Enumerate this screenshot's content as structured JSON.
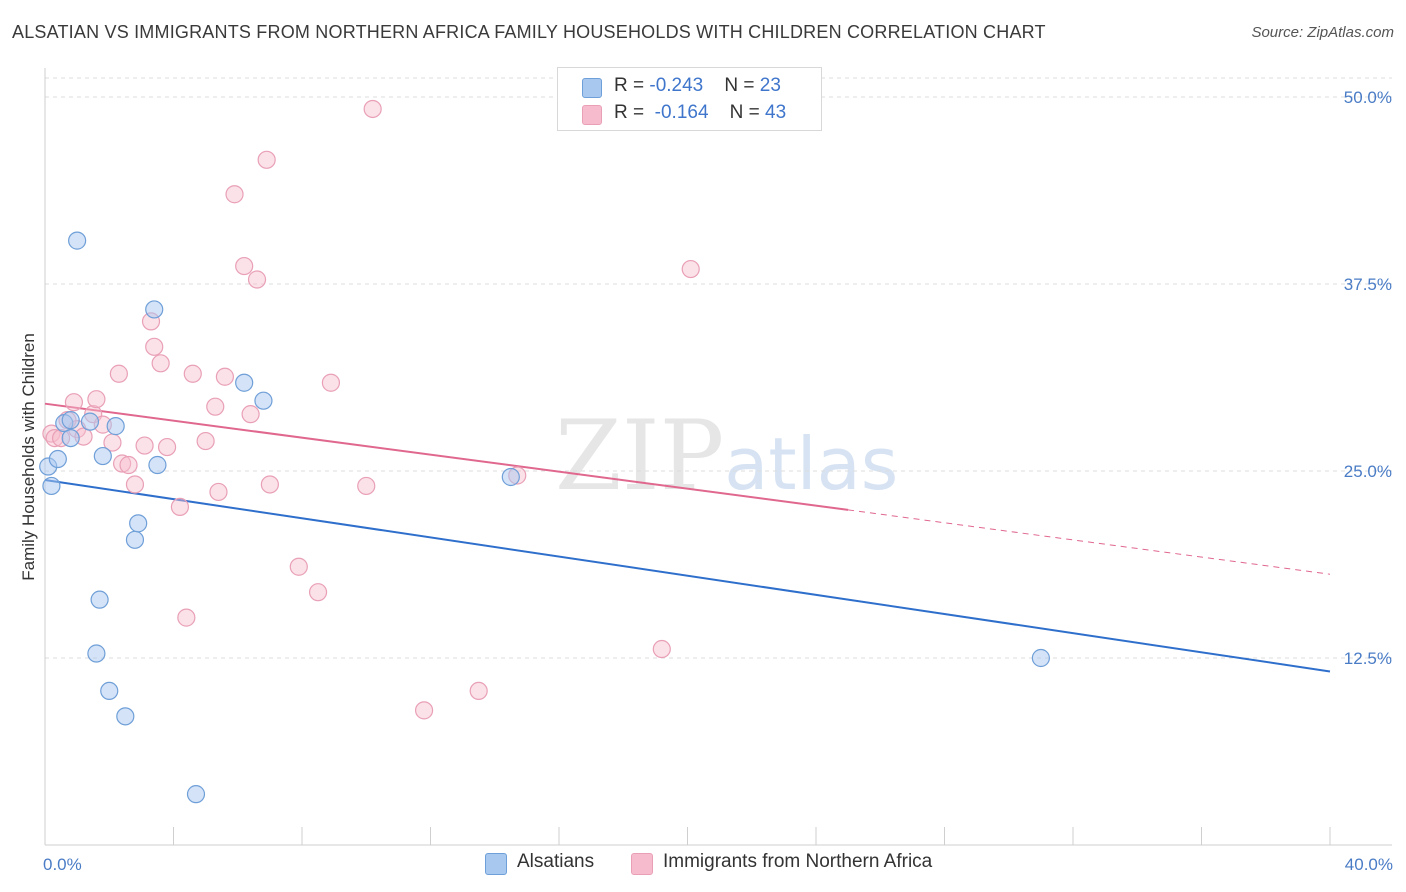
{
  "title": "ALSATIAN VS IMMIGRANTS FROM NORTHERN AFRICA FAMILY HOUSEHOLDS WITH CHILDREN CORRELATION CHART",
  "source": "Source: ZipAtlas.com",
  "watermark": {
    "zip": "ZIP",
    "atlas": "atlas"
  },
  "legend": {
    "rows": [
      {
        "r_label": "R = ",
        "r_value": "-0.243",
        "n_label": "N = ",
        "n_value": "23"
      },
      {
        "r_label": "R = ",
        "r_value": "-0.164",
        "n_label": "N = ",
        "n_value": "43"
      }
    ]
  },
  "colors": {
    "blue_fill": "#a9c8ef",
    "blue_stroke": "#6f9fd8",
    "blue_line": "#2f6fcc",
    "pink_fill": "#f6bccd",
    "pink_stroke": "#e9a0b7",
    "pink_line": "#e0678e",
    "grid": "#dcdcdc",
    "tick_text": "#4a7cc6"
  },
  "chart_data": {
    "type": "scatter",
    "title": "ALSATIAN VS IMMIGRANTS FROM NORTHERN AFRICA FAMILY HOUSEHOLDS WITH CHILDREN CORRELATION CHART",
    "xlabel": "",
    "ylabel": "Family Households with Children",
    "xlim": [
      0,
      40
    ],
    "ylim": [
      0,
      50
    ],
    "x_tick_labels": [
      "0.0%",
      "40.0%"
    ],
    "y_ticks": [
      12.5,
      25.0,
      37.5,
      50.0
    ],
    "y_tick_labels": [
      "12.5%",
      "25.0%",
      "37.5%",
      "50.0%"
    ],
    "grid": "horizontal dashed",
    "legend_position": "top-center",
    "series": [
      {
        "name": "Alsatians",
        "points": [
          [
            0.1,
            25.3
          ],
          [
            0.2,
            24.0
          ],
          [
            0.4,
            25.8
          ],
          [
            0.6,
            28.2
          ],
          [
            0.8,
            28.4
          ],
          [
            0.8,
            27.2
          ],
          [
            1.0,
            40.4
          ],
          [
            1.4,
            28.3
          ],
          [
            1.6,
            12.8
          ],
          [
            1.7,
            16.4
          ],
          [
            1.8,
            26.0
          ],
          [
            2.0,
            10.3
          ],
          [
            2.2,
            28.0
          ],
          [
            2.5,
            8.6
          ],
          [
            2.8,
            20.4
          ],
          [
            2.9,
            21.5
          ],
          [
            3.4,
            35.8
          ],
          [
            3.5,
            25.4
          ],
          [
            4.7,
            3.4
          ],
          [
            6.2,
            30.9
          ],
          [
            6.8,
            29.7
          ],
          [
            14.5,
            24.6
          ],
          [
            31.0,
            12.5
          ]
        ],
        "trend": {
          "x0": 0,
          "y0": 24.4,
          "x1": 40,
          "y1": 11.6
        }
      },
      {
        "name": "Immigrants from Northern Africa",
        "points": [
          [
            0.2,
            27.5
          ],
          [
            0.3,
            27.2
          ],
          [
            0.5,
            27.2
          ],
          [
            0.7,
            28.4
          ],
          [
            0.9,
            29.6
          ],
          [
            1.0,
            27.8
          ],
          [
            1.2,
            27.3
          ],
          [
            1.5,
            28.8
          ],
          [
            1.6,
            29.8
          ],
          [
            1.8,
            28.1
          ],
          [
            2.1,
            26.9
          ],
          [
            2.3,
            31.5
          ],
          [
            2.4,
            25.5
          ],
          [
            2.6,
            25.4
          ],
          [
            2.8,
            24.1
          ],
          [
            3.1,
            26.7
          ],
          [
            3.3,
            35.0
          ],
          [
            3.4,
            33.3
          ],
          [
            3.6,
            32.2
          ],
          [
            3.8,
            26.6
          ],
          [
            4.2,
            22.6
          ],
          [
            4.4,
            15.2
          ],
          [
            4.6,
            31.5
          ],
          [
            5.0,
            27.0
          ],
          [
            5.3,
            29.3
          ],
          [
            5.4,
            23.6
          ],
          [
            5.6,
            31.3
          ],
          [
            5.9,
            43.5
          ],
          [
            6.2,
            38.7
          ],
          [
            6.4,
            28.8
          ],
          [
            6.6,
            37.8
          ],
          [
            6.9,
            45.8
          ],
          [
            7.0,
            24.1
          ],
          [
            7.9,
            18.6
          ],
          [
            8.5,
            16.9
          ],
          [
            8.9,
            30.9
          ],
          [
            10.0,
            24.0
          ],
          [
            10.2,
            49.2
          ],
          [
            11.8,
            9.0
          ],
          [
            13.5,
            10.3
          ],
          [
            14.7,
            24.7
          ],
          [
            19.2,
            13.1
          ],
          [
            20.1,
            38.5
          ]
        ],
        "trend": {
          "x0": 0,
          "y0": 29.5,
          "x1": 25,
          "y1": 22.4
        },
        "trend_extension": {
          "x0": 25,
          "y0": 22.4,
          "x1": 40,
          "y1": 18.1
        }
      }
    ]
  }
}
